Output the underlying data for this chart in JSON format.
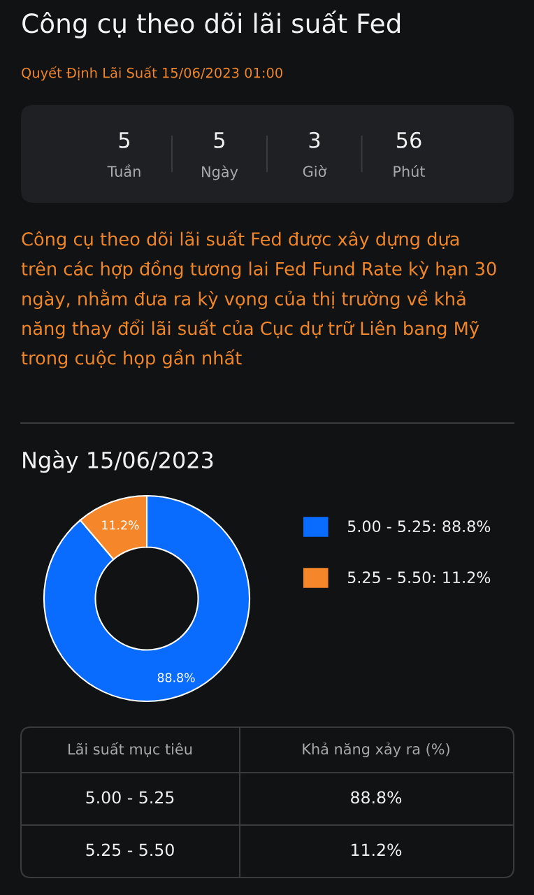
{
  "chart_data": [
    {
      "type": "other",
      "title": "Công cụ theo dõi lãi suất Fed",
      "subtitle": "Quyết Định Lãi Suất 15/06/2023 01:00",
      "annotations": [
        "5",
        "Tuần",
        "5",
        "Ngày",
        "3",
        "Giờ",
        "56",
        "Phút",
        "Công cụ theo dõi lãi suất Fed được xây dựng dựa trên các hợp đồng tương lai Fed Fund Rate kỳ hạn 30 ngày, nhằm đưa ra kỳ vọng của thị trường về khả năng thay đổi lãi suất của Cục dự trữ Liên bang Mỹ trong cuộc họp gần nhất"
      ]
    },
    {
      "type": "donut",
      "title": "Ngày 15/06/2023",
      "categories": [
        "5.00 - 5.25: 88.8%",
        "5.25 - 5.50: 11.2%"
      ],
      "values": [
        88.8,
        11.2
      ],
      "colors": [
        "#0a6cff",
        "#f5862a"
      ],
      "value_labels": [
        "88.8%",
        "11.2%"
      ],
      "legend": "right"
    },
    {
      "type": "other",
      "annotations": [
        "Lãi suất mục tiêu",
        "Khả năng xảy ra (%)",
        "5.00 - 5.25",
        "88.8%",
        "5.25 - 5.50",
        "11.2%"
      ]
    }
  ]
}
